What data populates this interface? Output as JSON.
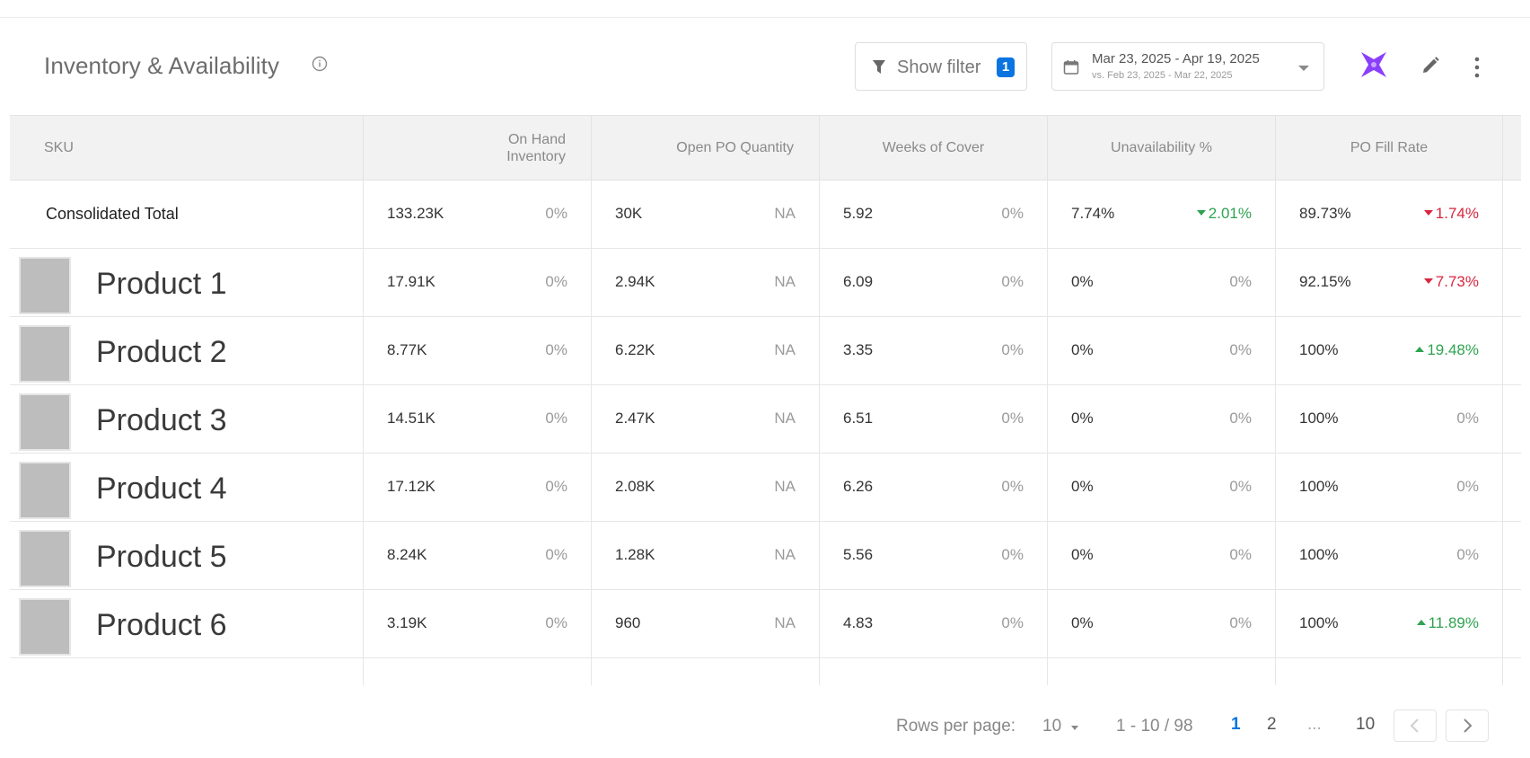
{
  "header": {
    "title": "Inventory & Availability",
    "filter_label": "Show filter",
    "filter_count": "1",
    "date_range": "Mar 23, 2025 - Apr 19, 2025",
    "compare_range": "vs. Feb 23, 2025 - Mar 22, 2025"
  },
  "colors": {
    "accent": "#0a74e0",
    "up": "#2fa350",
    "down": "#d8263f",
    "ai": "#8a3ffc"
  },
  "columns": {
    "sku": "SKU",
    "on_hand": "On Hand Inventory",
    "open_po": "Open PO Quantity",
    "weeks": "Weeks of Cover",
    "unavail": "Unavailability %",
    "fill": "PO Fill Rate"
  },
  "rows": [
    {
      "name": "Consolidated Total",
      "on_hand": "133.23K",
      "on_hand_chg": "0%",
      "open_po": "30K",
      "open_po_chg": "NA",
      "weeks": "5.92",
      "weeks_chg": "0%",
      "unavail": "7.74%",
      "unavail_chg": "2.01%",
      "unavail_dir": "down-good",
      "fill": "89.73%",
      "fill_chg": "1.74%",
      "fill_dir": "down-bad"
    },
    {
      "name": "Product 1",
      "on_hand": "17.91K",
      "on_hand_chg": "0%",
      "open_po": "2.94K",
      "open_po_chg": "NA",
      "weeks": "6.09",
      "weeks_chg": "0%",
      "unavail": "0%",
      "unavail_chg": "0%",
      "unavail_dir": "flat",
      "fill": "92.15%",
      "fill_chg": "7.73%",
      "fill_dir": "down-bad"
    },
    {
      "name": "Product 2",
      "on_hand": "8.77K",
      "on_hand_chg": "0%",
      "open_po": "6.22K",
      "open_po_chg": "NA",
      "weeks": "3.35",
      "weeks_chg": "0%",
      "unavail": "0%",
      "unavail_chg": "0%",
      "unavail_dir": "flat",
      "fill": "100%",
      "fill_chg": "19.48%",
      "fill_dir": "up-good"
    },
    {
      "name": "Product 3",
      "on_hand": "14.51K",
      "on_hand_chg": "0%",
      "open_po": "2.47K",
      "open_po_chg": "NA",
      "weeks": "6.51",
      "weeks_chg": "0%",
      "unavail": "0%",
      "unavail_chg": "0%",
      "unavail_dir": "flat",
      "fill": "100%",
      "fill_chg": "0%",
      "fill_dir": "flat"
    },
    {
      "name": "Product 4",
      "on_hand": "17.12K",
      "on_hand_chg": "0%",
      "open_po": "2.08K",
      "open_po_chg": "NA",
      "weeks": "6.26",
      "weeks_chg": "0%",
      "unavail": "0%",
      "unavail_chg": "0%",
      "unavail_dir": "flat",
      "fill": "100%",
      "fill_chg": "0%",
      "fill_dir": "flat"
    },
    {
      "name": "Product 5",
      "on_hand": "8.24K",
      "on_hand_chg": "0%",
      "open_po": "1.28K",
      "open_po_chg": "NA",
      "weeks": "5.56",
      "weeks_chg": "0%",
      "unavail": "0%",
      "unavail_chg": "0%",
      "unavail_dir": "flat",
      "fill": "100%",
      "fill_chg": "0%",
      "fill_dir": "flat"
    },
    {
      "name": "Product 6",
      "on_hand": "3.19K",
      "on_hand_chg": "0%",
      "open_po": "960",
      "open_po_chg": "NA",
      "weeks": "4.83",
      "weeks_chg": "0%",
      "unavail": "0%",
      "unavail_chg": "0%",
      "unavail_dir": "flat",
      "fill": "100%",
      "fill_chg": "11.89%",
      "fill_dir": "up-good"
    }
  ],
  "pagination": {
    "rows_per_page_label": "Rows per page:",
    "rows_per_page": "10",
    "range": "1 - 10 / 98",
    "pages": [
      "1",
      "2",
      "10"
    ],
    "ellipsis": "...",
    "current_page": "1"
  }
}
